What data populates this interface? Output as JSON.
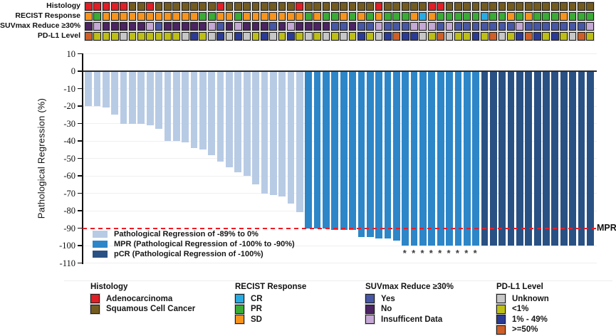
{
  "tracks": {
    "rows": [
      {
        "key": "histology",
        "label": "Histology",
        "values": [
          "A",
          "A",
          "A",
          "A",
          "A",
          "S",
          "S",
          "A",
          "S",
          "S",
          "S",
          "S",
          "S",
          "S",
          "S",
          "A",
          "S",
          "S",
          "S",
          "S",
          "S",
          "S",
          "S",
          "S",
          "A",
          "S",
          "S",
          "S",
          "S",
          "S",
          "S",
          "S",
          "S",
          "A",
          "S",
          "S",
          "S",
          "S",
          "S",
          "A",
          "A",
          "S",
          "S",
          "S",
          "S",
          "S",
          "S",
          "S",
          "S",
          "S",
          "S",
          "S",
          "S",
          "S",
          "S",
          "S",
          "S",
          "S"
        ]
      },
      {
        "key": "recist",
        "label": "RECIST Response",
        "values": [
          "SD",
          "PR",
          "SD",
          "SD",
          "SD",
          "SD",
          "SD",
          "SD",
          "SD",
          "SD",
          "SD",
          "SD",
          "SD",
          "PR",
          "PR",
          "SD",
          "SD",
          "PR",
          "SD",
          "SD",
          "SD",
          "SD",
          "SD",
          "SD",
          "SD",
          "PR",
          "SD",
          "PR",
          "PR",
          "SD",
          "PR",
          "SD",
          "PR",
          "SD",
          "PR",
          "PR",
          "PR",
          "SD",
          "CR",
          "SD",
          "PR",
          "PR",
          "PR",
          "PR",
          "PR",
          "CR",
          "PR",
          "PR",
          "SD",
          "PR",
          "SD",
          "PR",
          "PR",
          "PR",
          "SD",
          "PR",
          "PR",
          "PR"
        ]
      },
      {
        "key": "suvmax",
        "label": "SUVmax Reduce ≥30%",
        "values": [
          "N",
          "I",
          "N",
          "N",
          "N",
          "N",
          "N",
          "I",
          "Y",
          "N",
          "N",
          "N",
          "N",
          "N",
          "I",
          "Y",
          "N",
          "I",
          "N",
          "N",
          "N",
          "Y",
          "N",
          "I",
          "N",
          "N",
          "N",
          "N",
          "Y",
          "Y",
          "N",
          "Y",
          "Y",
          "I",
          "Y",
          "Y",
          "Y",
          "I",
          "I",
          "I",
          "Y",
          "I",
          "Y",
          "Y",
          "Y",
          "Y",
          "Y",
          "Y",
          "Y",
          "I",
          "Y",
          "Y",
          "Y",
          "Y",
          "Y",
          "Y",
          "Y",
          "I"
        ]
      },
      {
        "key": "pdl1",
        "label": "PD-L1 Level",
        "values": [
          "H",
          "L",
          "L",
          "L",
          "U",
          "L",
          "L",
          "L",
          "L",
          "L",
          "L",
          "U",
          "M",
          "L",
          "U",
          "M",
          "U",
          "M",
          "U",
          "L",
          "M",
          "U",
          "L",
          "M",
          "L",
          "U",
          "L",
          "U",
          "L",
          "U",
          "L",
          "M",
          "L",
          "U",
          "M",
          "H",
          "M",
          "M",
          "U",
          "L",
          "H",
          "U",
          "L",
          "L",
          "M",
          "L",
          "H",
          "U",
          "L",
          "M",
          "H",
          "M",
          "L",
          "M",
          "L",
          "U",
          "H",
          "L"
        ]
      }
    ],
    "palettes": {
      "histology": {
        "A": "#e11f26",
        "S": "#745c20"
      },
      "recist": {
        "CR": "#29abe2",
        "PR": "#3aab35",
        "SD": "#f7941d"
      },
      "suvmax": {
        "Y": "#4757a5",
        "N": "#4c2363",
        "I": "#c5a8d5"
      },
      "pdl1": {
        "U": "#c7c7c7",
        "L": "#bdbf17",
        "M": "#2b3b95",
        "H": "#ce5f28"
      }
    }
  },
  "chart_data": {
    "type": "bar",
    "title": "",
    "xlabel": "",
    "ylabel": "Pathological Regression (%)",
    "ylim": [
      -110,
      10
    ],
    "yticks": [
      10,
      0,
      -10,
      -20,
      -30,
      -40,
      -50,
      -60,
      -70,
      -80,
      -90,
      -100,
      -110
    ],
    "grid": "horizontal",
    "values": [
      -20,
      -20,
      -21,
      -25,
      -30,
      -30,
      -30,
      -31,
      -33,
      -40,
      -40,
      -41,
      -44,
      -45,
      -48,
      -52,
      -55,
      -58,
      -60,
      -65,
      -70,
      -71,
      -72,
      -76,
      -81,
      -90,
      -90,
      -90,
      -91,
      -91,
      -91,
      -95,
      -95,
      -96,
      -96,
      -97,
      -100,
      -100,
      -100,
      -100,
      -100,
      -100,
      -100,
      -100,
      -100,
      -100,
      -100,
      -100,
      -100,
      -100,
      -100,
      -100,
      -100,
      -100,
      -100,
      -100,
      -100,
      -100
    ],
    "groups": [
      "PRR",
      "PRR",
      "PRR",
      "PRR",
      "PRR",
      "PRR",
      "PRR",
      "PRR",
      "PRR",
      "PRR",
      "PRR",
      "PRR",
      "PRR",
      "PRR",
      "PRR",
      "PRR",
      "PRR",
      "PRR",
      "PRR",
      "PRR",
      "PRR",
      "PRR",
      "PRR",
      "PRR",
      "PRR",
      "MPR",
      "MPR",
      "MPR",
      "MPR",
      "MPR",
      "MPR",
      "MPR",
      "MPR",
      "MPR",
      "MPR",
      "MPR",
      "MPR",
      "MPR",
      "MPR",
      "MPR",
      "MPR",
      "MPR",
      "MPR",
      "MPR",
      "MPR",
      "pCR",
      "pCR",
      "pCR",
      "pCR",
      "pCR",
      "pCR",
      "pCR",
      "pCR",
      "pCR",
      "pCR",
      "pCR",
      "pCR",
      "pCR"
    ],
    "group_colors": {
      "PRR": "#b8cbe5",
      "MPR": "#2d86c8",
      "pCR": "#2a5183"
    },
    "reference_line": {
      "value": -90,
      "label": "MPR",
      "color": "#ed1c24"
    },
    "asterisks": {
      "symbol": "*",
      "columns": [
        37,
        38,
        39,
        40,
        41,
        42,
        43,
        44,
        45
      ]
    },
    "legend": [
      {
        "key": "PRR",
        "label": "Pathological Regression of -89% to 0%"
      },
      {
        "key": "MPR",
        "label": "MPR (Pathological Regression of -100% to -90%)"
      },
      {
        "key": "pCR",
        "label": "pCR (Pathological Regression of -100%)"
      }
    ],
    "legend_position": "lower-left-inside"
  },
  "bottom_legends": [
    {
      "title": "Histology",
      "items": [
        {
          "label": "Adenocarcinoma",
          "color": "#e11f26"
        },
        {
          "label": "Squamous Cell Cancer",
          "color": "#745c20"
        }
      ]
    },
    {
      "title": "RECIST Response",
      "items": [
        {
          "label": "CR",
          "color": "#29abe2"
        },
        {
          "label": "PR",
          "color": "#3aab35"
        },
        {
          "label": "SD",
          "color": "#f7941d"
        }
      ]
    },
    {
      "title": "SUVmax Reduce ≥30%",
      "items": [
        {
          "label": "Yes",
          "color": "#4757a5"
        },
        {
          "label": "No",
          "color": "#4c2363"
        },
        {
          "label": "Insufficent Data",
          "color": "#c5a8d5"
        }
      ]
    },
    {
      "title": "PD-L1 Level",
      "items": [
        {
          "label": "Unknown",
          "color": "#c7c7c7"
        },
        {
          "label": "<1%",
          "color": "#bdbf17"
        },
        {
          "label": "1% - 49%",
          "color": "#2b3b95"
        },
        {
          "label": ">=50%",
          "color": "#ce5f28"
        }
      ]
    }
  ]
}
